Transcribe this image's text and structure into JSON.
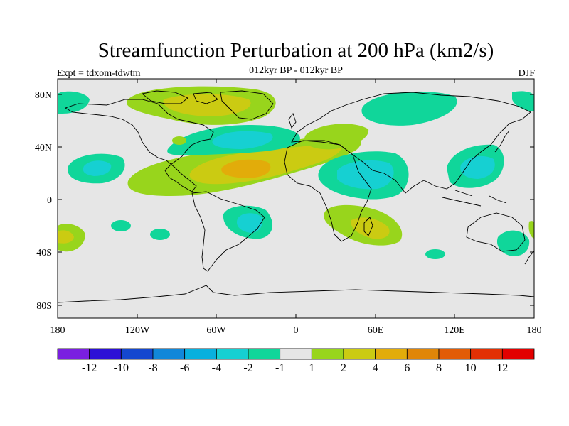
{
  "title": "Streamfunction Perturbation at 200 hPa (km2/s)",
  "subtitle": "012kyr BP - 012kyr BP",
  "left_label": "Expt = tdxom-tdwtm",
  "right_label": "DJF",
  "lat_labels": [
    "80N",
    "40N",
    "0",
    "40S",
    "80S"
  ],
  "lon_labels": [
    "180",
    "120W",
    "60W",
    "0",
    "60E",
    "120E",
    "180"
  ],
  "colorbar": {
    "colors": [
      "#7a1fe0",
      "#2c10d6",
      "#1447cf",
      "#1187d9",
      "#08b0de",
      "#16d0d2",
      "#10d69a",
      "#e6e6e6",
      "#98d51c",
      "#cbcb12",
      "#e2ac0a",
      "#e08608",
      "#e25c06",
      "#e23004",
      "#e20000"
    ],
    "labels": [
      "-12",
      "-10",
      "-8",
      "-6",
      "-4",
      "-2",
      "-1",
      "1",
      "2",
      "4",
      "6",
      "8",
      "10",
      "12"
    ]
  },
  "colors": {
    "ocean_fill": "#e6e6e6",
    "coastline": "#000000"
  }
}
